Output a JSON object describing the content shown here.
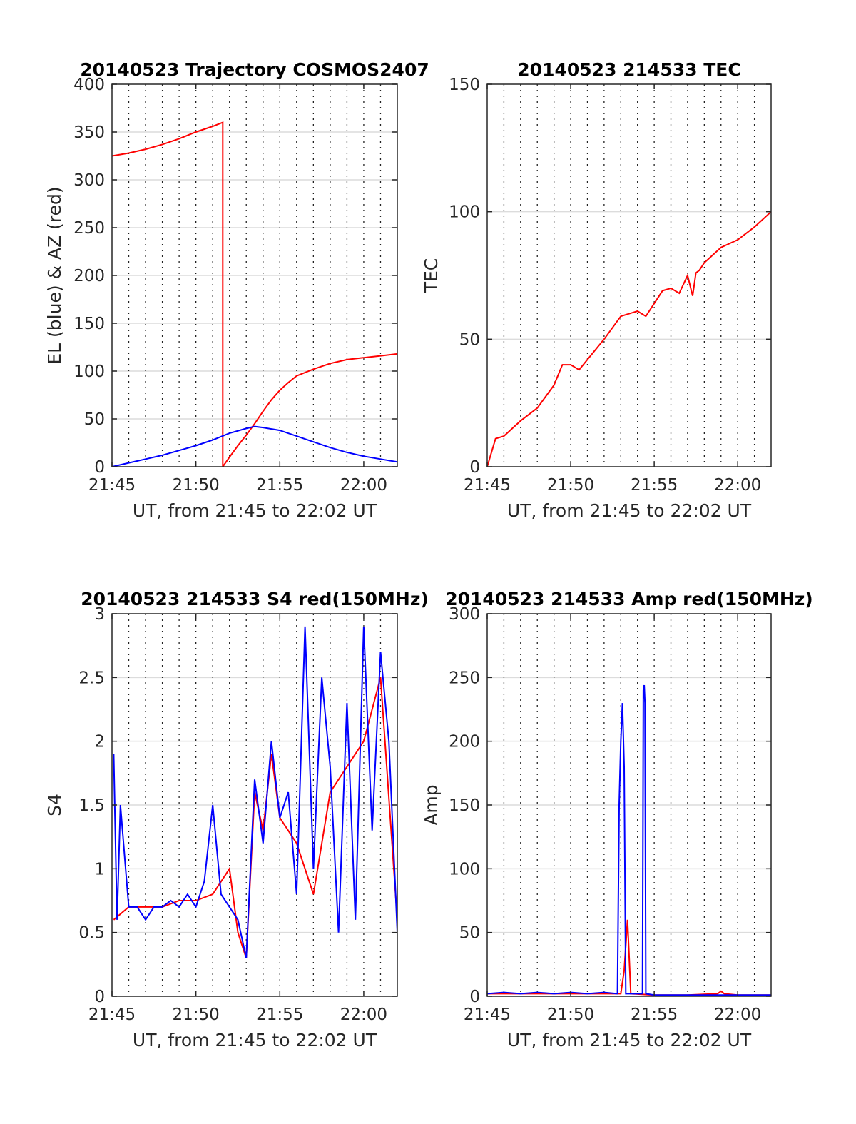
{
  "chart_data": [
    {
      "type": "line",
      "title": "20140523 Trajectory COSMOS2407",
      "xlabel": "UT, from 21:45 to 22:02 UT",
      "ylabel": "EL (blue) & AZ (red)",
      "xlim": [
        0,
        17
      ],
      "ylim": [
        0,
        400
      ],
      "xticks": [
        0,
        5,
        10,
        15
      ],
      "xticklabels": [
        "21:45",
        "21:50",
        "21:55",
        "22:00"
      ],
      "yticks": [
        0,
        50,
        100,
        150,
        200,
        250,
        300,
        350,
        400
      ],
      "yticklabels": [
        "0",
        "50",
        "100",
        "150",
        "200",
        "250",
        "300",
        "350",
        "400"
      ],
      "grid": "horizontal solid, vertical dotted every minute",
      "series": [
        {
          "color": "#ff0000",
          "x": [
            0,
            1,
            2,
            3,
            4,
            5,
            6,
            6.6,
            6.6,
            7,
            7.5,
            8,
            8.5,
            9,
            9.5,
            10,
            10.5,
            11,
            12,
            13,
            14,
            15,
            16,
            17
          ],
          "y": [
            325,
            328,
            332,
            337,
            343,
            350,
            356,
            360,
            0,
            10,
            22,
            33,
            45,
            58,
            70,
            80,
            88,
            95,
            102,
            108,
            112,
            114,
            116,
            118
          ]
        },
        {
          "color": "#0000ff",
          "x": [
            0,
            1,
            2,
            3,
            4,
            5,
            6,
            7,
            8,
            8.5,
            9,
            10,
            11,
            12,
            13,
            14,
            15,
            16,
            17
          ],
          "y": [
            0,
            4,
            8,
            12,
            17,
            22,
            28,
            35,
            40,
            42,
            41,
            38,
            32,
            26,
            20,
            15,
            11,
            8,
            5
          ]
        }
      ]
    },
    {
      "type": "line",
      "title": "20140523 214533 TEC",
      "xlabel": "UT, from 21:45 to 22:02 UT",
      "ylabel": "TEC",
      "xlim": [
        0,
        17
      ],
      "ylim": [
        0,
        150
      ],
      "xticks": [
        0,
        5,
        10,
        15
      ],
      "xticklabels": [
        "21:45",
        "21:50",
        "21:55",
        "22:00"
      ],
      "yticks": [
        0,
        50,
        100,
        150
      ],
      "yticklabels": [
        "0",
        "50",
        "100",
        "150"
      ],
      "grid": "horizontal solid, vertical dotted every minute",
      "series": [
        {
          "color": "#ff0000",
          "x": [
            0,
            0.5,
            1,
            1.5,
            2,
            3,
            4,
            4.5,
            5,
            5.5,
            6,
            7,
            8,
            8.5,
            9,
            9.5,
            10,
            10.5,
            11,
            11.5,
            12,
            12.3,
            12.5,
            12.7,
            13,
            14,
            15,
            16,
            17
          ],
          "y": [
            0,
            11,
            12,
            15,
            18,
            23,
            32,
            40,
            40,
            38,
            42,
            50,
            59,
            60,
            61,
            59,
            64,
            69,
            70,
            68,
            75,
            67,
            76,
            77,
            80,
            86,
            89,
            94,
            100
          ]
        }
      ]
    },
    {
      "type": "line",
      "title": "20140523 214533 S4 red(150MHz)",
      "xlabel": "UT, from 21:45 to 22:02 UT",
      "ylabel": "S4",
      "xlim": [
        0,
        17
      ],
      "ylim": [
        0,
        3
      ],
      "xticks": [
        0,
        5,
        10,
        15
      ],
      "xticklabels": [
        "21:45",
        "21:50",
        "21:55",
        "22:00"
      ],
      "yticks": [
        0,
        0.5,
        1,
        1.5,
        2,
        2.5,
        3
      ],
      "yticklabels": [
        "0",
        "0.5",
        "1",
        "1.5",
        "2",
        "2.5",
        "3"
      ],
      "grid": "horizontal solid, vertical dotted every minute",
      "series": [
        {
          "color": "#ff0000",
          "x": [
            0.1,
            1,
            2,
            3,
            4,
            5,
            6,
            7,
            7.5,
            8,
            8.5,
            9,
            9.5,
            10,
            11,
            12,
            13,
            14,
            15,
            16,
            17
          ],
          "y": [
            0.6,
            0.7,
            0.7,
            0.7,
            0.75,
            0.75,
            0.8,
            1.0,
            0.5,
            0.3,
            1.6,
            1.3,
            1.9,
            1.4,
            1.2,
            0.8,
            1.6,
            1.8,
            2.0,
            2.5,
            0.6
          ]
        },
        {
          "color": "#0000ff",
          "x": [
            0.1,
            0.3,
            0.5,
            1,
            1.5,
            2,
            2.5,
            3,
            3.5,
            4,
            4.5,
            5,
            5.5,
            6,
            6.5,
            7,
            7.5,
            8,
            8.5,
            9,
            9.5,
            10,
            10.5,
            11,
            11.5,
            12,
            12.5,
            13,
            13.5,
            14,
            14.5,
            15,
            15.5,
            16,
            16.5,
            17
          ],
          "y": [
            1.9,
            0.6,
            1.5,
            0.7,
            0.7,
            0.6,
            0.7,
            0.7,
            0.75,
            0.7,
            0.8,
            0.7,
            0.9,
            1.5,
            0.8,
            0.7,
            0.6,
            0.3,
            1.7,
            1.2,
            2.0,
            1.4,
            1.6,
            0.8,
            2.9,
            1.0,
            2.5,
            1.8,
            0.5,
            2.3,
            0.6,
            2.9,
            1.3,
            2.7,
            2.0,
            0.5
          ]
        }
      ]
    },
    {
      "type": "line",
      "title": "20140523 214533 Amp red(150MHz)",
      "xlabel": "UT, from 21:45 to 22:02 UT",
      "ylabel": "Amp",
      "xlim": [
        0,
        17
      ],
      "ylim": [
        0,
        300
      ],
      "xticks": [
        0,
        5,
        10,
        15
      ],
      "xticklabels": [
        "21:45",
        "21:50",
        "21:55",
        "22:00"
      ],
      "yticks": [
        0,
        50,
        100,
        150,
        200,
        250,
        300
      ],
      "yticklabels": [
        "0",
        "50",
        "100",
        "150",
        "200",
        "250",
        "300"
      ],
      "grid": "horizontal solid, vertical dotted every minute",
      "series": [
        {
          "color": "#ff0000",
          "x": [
            0,
            2,
            4,
            6,
            8,
            8.2,
            8.4,
            8.6,
            10,
            12,
            13.8,
            14,
            14.2,
            15,
            17
          ],
          "y": [
            2,
            2,
            2,
            2,
            2,
            20,
            60,
            2,
            1,
            1,
            2,
            4,
            2,
            1,
            1
          ]
        },
        {
          "color": "#0000ff",
          "x": [
            0,
            1,
            2,
            3,
            4,
            5,
            6,
            7,
            7.8,
            7.9,
            8.0,
            8.1,
            8.2,
            8.3,
            8.4,
            8.5,
            9.0,
            9.3,
            9.35,
            9.4,
            9.45,
            9.5,
            10,
            11,
            12,
            13,
            14,
            15,
            16,
            17
          ],
          "y": [
            2,
            3,
            2,
            3,
            2,
            3,
            2,
            3,
            2,
            150,
            200,
            230,
            180,
            2,
            2,
            2,
            2,
            2,
            240,
            244,
            230,
            2,
            1,
            1,
            1,
            1,
            1,
            1,
            1,
            1
          ]
        }
      ]
    }
  ]
}
